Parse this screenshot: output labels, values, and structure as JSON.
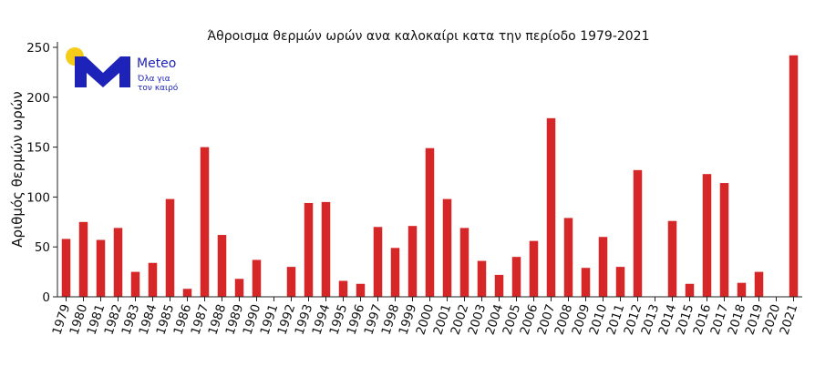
{
  "chart_data": {
    "type": "bar",
    "title": "Άθροισμα θερμών ωρών ανα καλοκαίρι κατα την περίοδο 1979-2021",
    "xlabel": "",
    "ylabel": "Αριθμός θερμών ωρών",
    "ylim": [
      0,
      250
    ],
    "yticks": [
      0,
      50,
      100,
      150,
      200,
      250
    ],
    "grid": false,
    "bar_color": "#d62728",
    "categories": [
      "1979",
      "1980",
      "1981",
      "1982",
      "1983",
      "1984",
      "1985",
      "1986",
      "1987",
      "1988",
      "1989",
      "1990",
      "1991",
      "1992",
      "1993",
      "1994",
      "1995",
      "1996",
      "1997",
      "1998",
      "1999",
      "2000",
      "2001",
      "2002",
      "2003",
      "2004",
      "2005",
      "2006",
      "2007",
      "2008",
      "2009",
      "2010",
      "2011",
      "2012",
      "2013",
      "2014",
      "2015",
      "2016",
      "2017",
      "2018",
      "2019",
      "2020",
      "2021"
    ],
    "values": [
      58,
      75,
      57,
      69,
      25,
      34,
      98,
      8,
      150,
      62,
      18,
      37,
      0,
      30,
      94,
      95,
      16,
      13,
      70,
      49,
      71,
      149,
      98,
      69,
      36,
      22,
      40,
      56,
      179,
      79,
      29,
      60,
      30,
      127,
      0,
      76,
      13,
      123,
      114,
      14,
      25,
      0,
      242
    ]
  },
  "logo": {
    "brand": "Meteo",
    "tagline_line1": "Όλα για",
    "tagline_line2": "τον καιρό",
    "sun_color": "#f5cc1a",
    "brand_color": "#1d23b8"
  }
}
